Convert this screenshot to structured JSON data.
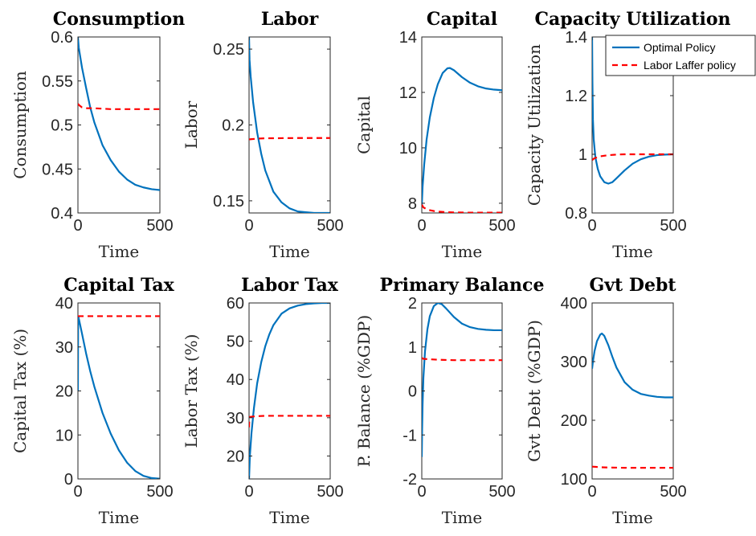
{
  "colors": {
    "optimal": "#0072BD",
    "laffer": "#FF0000",
    "axis": "#262626"
  },
  "legend": {
    "placement": "top-right",
    "entries": [
      {
        "label": "Optimal Policy",
        "color": "#0072BD",
        "style": "solid"
      },
      {
        "label": "Labor Laffer policy",
        "color": "#FF0000",
        "style": "dashed"
      }
    ]
  },
  "chart_data": [
    {
      "type": "line",
      "title": "Consumption",
      "xlabel": "Time",
      "ylabel": "Consumption",
      "xlim": [
        0,
        500
      ],
      "ylim": [
        0.4,
        0.6
      ],
      "xticks": [
        0,
        500
      ],
      "xticklabels": [
        "0",
        "500"
      ],
      "yticks": [
        0.4,
        0.45,
        0.5,
        0.55,
        0.6
      ],
      "yticklabels": [
        "0.4",
        "0.45",
        "0.5",
        "0.55",
        "0.6"
      ],
      "series": [
        {
          "name": "Optimal Policy",
          "x": [
            0,
            5,
            25,
            50,
            75,
            100,
            150,
            200,
            250,
            300,
            350,
            400,
            450,
            500
          ],
          "y": [
            0.6,
            0.588,
            0.565,
            0.542,
            0.52,
            0.503,
            0.477,
            0.46,
            0.447,
            0.438,
            0.432,
            0.429,
            0.427,
            0.426
          ]
        },
        {
          "name": "Labor Laffer policy",
          "x": [
            0,
            10,
            25,
            50,
            75,
            100,
            200,
            300,
            400,
            500
          ],
          "y": [
            0.524,
            0.522,
            0.52,
            0.519,
            0.519,
            0.519,
            0.518,
            0.518,
            0.518,
            0.518
          ]
        }
      ]
    },
    {
      "type": "line",
      "title": "Labor",
      "xlabel": "Time",
      "ylabel": "Labor",
      "xlim": [
        0,
        500
      ],
      "ylim": [
        0.142,
        0.258
      ],
      "xticks": [
        0,
        500
      ],
      "xticklabels": [
        "0",
        "500"
      ],
      "yticks": [
        0.15,
        0.2,
        0.25
      ],
      "yticklabels": [
        "0.15",
        "0.2",
        "0.25"
      ],
      "series": [
        {
          "name": "Optimal Policy",
          "x": [
            0,
            3,
            10,
            25,
            50,
            75,
            100,
            150,
            200,
            250,
            300,
            350,
            400,
            450,
            500
          ],
          "y": [
            0.258,
            0.243,
            0.232,
            0.215,
            0.195,
            0.181,
            0.17,
            0.156,
            0.149,
            0.145,
            0.143,
            0.1425,
            0.142,
            0.142,
            0.142
          ]
        },
        {
          "name": "Labor Laffer policy",
          "x": [
            0,
            10,
            50,
            100,
            200,
            300,
            400,
            500
          ],
          "y": [
            0.1905,
            0.1906,
            0.191,
            0.1912,
            0.1913,
            0.1914,
            0.1914,
            0.1914
          ]
        }
      ]
    },
    {
      "type": "line",
      "title": "Capital",
      "xlabel": "Time",
      "ylabel": "Capital",
      "xlim": [
        0,
        500
      ],
      "ylim": [
        7.65,
        14
      ],
      "xticks": [
        0,
        500
      ],
      "xticklabels": [
        "0",
        "500"
      ],
      "yticks": [
        8,
        10,
        12,
        14
      ],
      "yticklabels": [
        "8",
        "10",
        "12",
        "14"
      ],
      "series": [
        {
          "name": "Optimal Policy",
          "x": [
            0,
            5,
            15,
            30,
            50,
            75,
            100,
            130,
            160,
            175,
            200,
            250,
            300,
            350,
            400,
            450,
            500
          ],
          "y": [
            7.9,
            8.6,
            9.4,
            10.3,
            11.1,
            11.8,
            12.3,
            12.7,
            12.87,
            12.88,
            12.8,
            12.55,
            12.35,
            12.22,
            12.14,
            12.1,
            12.08
          ]
        },
        {
          "name": "Labor Laffer policy",
          "x": [
            0,
            10,
            25,
            50,
            75,
            100,
            150,
            200,
            300,
            400,
            500
          ],
          "y": [
            7.95,
            7.85,
            7.8,
            7.75,
            7.72,
            7.7,
            7.68,
            7.67,
            7.66,
            7.66,
            7.66
          ]
        }
      ]
    },
    {
      "type": "line",
      "title": "Capacity Utilization",
      "xlabel": "Time",
      "ylabel": "Capacity Utilization",
      "xlim": [
        0,
        500
      ],
      "ylim": [
        0.8,
        1.4
      ],
      "xticks": [
        0,
        500
      ],
      "xticklabels": [
        "0",
        "500"
      ],
      "yticks": [
        0.8,
        1,
        1.2,
        1.4
      ],
      "yticklabels": [
        "0.8",
        "1",
        "1.2",
        "1.4"
      ],
      "series": [
        {
          "name": "Optimal Policy",
          "x": [
            0,
            2,
            5,
            10,
            20,
            35,
            50,
            75,
            100,
            125,
            150,
            200,
            250,
            300,
            350,
            400,
            450,
            500
          ],
          "y": [
            1.4,
            1.25,
            1.12,
            1.05,
            0.99,
            0.95,
            0.925,
            0.905,
            0.9,
            0.905,
            0.918,
            0.945,
            0.968,
            0.983,
            0.992,
            0.997,
            0.999,
            1.0
          ]
        },
        {
          "name": "Labor Laffer policy",
          "x": [
            0,
            10,
            30,
            50,
            100,
            150,
            200,
            300,
            400,
            500
          ],
          "y": [
            0.98,
            0.985,
            0.99,
            0.993,
            0.997,
            0.999,
            1.0,
            1.0,
            1.0,
            1.0
          ]
        }
      ]
    },
    {
      "type": "line",
      "title": "Capital Tax",
      "xlabel": "Time",
      "ylabel": "Capital Tax (%)",
      "xlim": [
        0,
        500
      ],
      "ylim": [
        0,
        40
      ],
      "xticks": [
        0,
        500
      ],
      "xticklabels": [
        "0",
        "500"
      ],
      "yticks": [
        0,
        10,
        20,
        30,
        40
      ],
      "yticklabels": [
        "0",
        "10",
        "20",
        "30",
        "40"
      ],
      "series": [
        {
          "name": "Optimal Policy",
          "x": [
            0,
            1,
            2,
            5,
            25,
            50,
            75,
            100,
            150,
            200,
            250,
            300,
            350,
            400,
            450,
            500
          ],
          "y": [
            20,
            33,
            37,
            36.5,
            33,
            28.5,
            24.5,
            21,
            15,
            10.3,
            6.5,
            3.7,
            1.8,
            0.7,
            0.2,
            0.05
          ]
        },
        {
          "name": "Labor Laffer policy",
          "x": [
            0,
            50,
            100,
            200,
            300,
            400,
            500
          ],
          "y": [
            37,
            37,
            37,
            37,
            37,
            37,
            37
          ]
        }
      ]
    },
    {
      "type": "line",
      "title": "Labor Tax",
      "xlabel": "Time",
      "ylabel": "Labor Tax (%)",
      "xlim": [
        0,
        500
      ],
      "ylim": [
        14,
        60
      ],
      "xticks": [
        0,
        500
      ],
      "xticklabels": [
        "0",
        "500"
      ],
      "yticks": [
        20,
        30,
        40,
        50,
        60
      ],
      "yticklabels": [
        "20",
        "30",
        "40",
        "50",
        "60"
      ],
      "series": [
        {
          "name": "Optimal Policy",
          "x": [
            0,
            5,
            15,
            30,
            50,
            75,
            100,
            125,
            150,
            200,
            250,
            300,
            350,
            400,
            450,
            500
          ],
          "y": [
            14,
            20,
            26,
            32.5,
            39,
            44.5,
            48.7,
            51.8,
            54.2,
            57.2,
            58.6,
            59.3,
            59.7,
            59.9,
            60,
            60
          ]
        },
        {
          "name": "Labor Laffer policy",
          "x": [
            0,
            2,
            5,
            20,
            50,
            100,
            200,
            300,
            400,
            500
          ],
          "y": [
            27.5,
            30,
            30.2,
            30.3,
            30.4,
            30.5,
            30.5,
            30.5,
            30.5,
            30.5
          ]
        }
      ]
    },
    {
      "type": "line",
      "title": "Primary Balance",
      "xlabel": "Time",
      "ylabel": "P. Balance (%GDP)",
      "xlim": [
        0,
        500
      ],
      "ylim": [
        -2,
        2
      ],
      "xticks": [
        0,
        500
      ],
      "xticklabels": [
        "0",
        "500"
      ],
      "yticks": [
        -2,
        -1,
        0,
        1,
        2
      ],
      "yticklabels": [
        "-2",
        "-1",
        "0",
        "1",
        "2"
      ],
      "series": [
        {
          "name": "Optimal Policy",
          "x": [
            0,
            2,
            5,
            10,
            20,
            35,
            50,
            75,
            100,
            125,
            150,
            200,
            250,
            300,
            350,
            400,
            450,
            500
          ],
          "y": [
            -1.5,
            -0.9,
            -0.3,
            0.3,
            0.9,
            1.4,
            1.7,
            1.93,
            2.0,
            1.97,
            1.88,
            1.68,
            1.53,
            1.45,
            1.41,
            1.39,
            1.38,
            1.38
          ]
        },
        {
          "name": "Labor Laffer policy",
          "x": [
            0,
            10,
            50,
            100,
            200,
            300,
            400,
            500
          ],
          "y": [
            0.75,
            0.73,
            0.72,
            0.71,
            0.7,
            0.7,
            0.7,
            0.7
          ]
        }
      ]
    },
    {
      "type": "line",
      "title": "Gvt Debt",
      "xlabel": "Time",
      "ylabel": "Gvt Debt (%GDP)",
      "xlim": [
        0,
        500
      ],
      "ylim": [
        100,
        400
      ],
      "xticks": [
        0,
        500
      ],
      "xticklabels": [
        "0",
        "500"
      ],
      "yticks": [
        100,
        200,
        300,
        400
      ],
      "yticklabels": [
        "100",
        "200",
        "300",
        "400"
      ],
      "series": [
        {
          "name": "Optimal Policy",
          "x": [
            0,
            5,
            15,
            30,
            50,
            60,
            75,
            100,
            125,
            150,
            200,
            250,
            300,
            350,
            400,
            450,
            500
          ],
          "y": [
            288,
            300,
            318,
            335,
            346,
            348,
            344,
            328,
            308,
            290,
            265,
            252,
            245,
            242,
            240,
            239,
            239
          ]
        },
        {
          "name": "Labor Laffer policy",
          "x": [
            0,
            25,
            50,
            100,
            200,
            300,
            400,
            500
          ],
          "y": [
            121,
            120.5,
            120,
            119.5,
            119,
            119,
            119,
            119
          ]
        }
      ]
    }
  ]
}
